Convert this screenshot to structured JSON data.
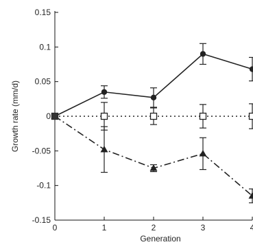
{
  "chart_data": {
    "type": "line",
    "title": "",
    "xlabel": "Generation",
    "ylabel": "Growth rate (mm/d)",
    "xlim": [
      0,
      4
    ],
    "ylim": [
      -0.15,
      0.15
    ],
    "x_ticks": [
      0,
      1,
      2,
      3,
      4
    ],
    "y_ticks": [
      0.15,
      0.1,
      0.05,
      0,
      -0.05,
      -0.1,
      -0.15
    ],
    "y_tick_labels": [
      "0.15",
      "0.1",
      "0.05",
      "0",
      "-0.05",
      "-0.1",
      "-0.15"
    ],
    "grid": false,
    "legend": "none",
    "series": [
      {
        "marker": "circle-filled",
        "line_style": "solid",
        "color": "#222222",
        "x": [
          0,
          1,
          2,
          3,
          4
        ],
        "y": [
          0,
          0.035,
          0.027,
          0.09,
          0.068
        ],
        "err": [
          0,
          0.009,
          0.014,
          0.015,
          0.017
        ]
      },
      {
        "marker": "square-open",
        "line_style": "dotted",
        "color": "#222222",
        "x": [
          0,
          1,
          2,
          3,
          4
        ],
        "y": [
          0,
          0,
          0,
          0,
          0
        ],
        "err": [
          0,
          0.02,
          0.012,
          0.017,
          0.018
        ]
      },
      {
        "marker": "triangle-filled",
        "line_style": "dashdot",
        "color": "#222222",
        "x": [
          0,
          1,
          2,
          3,
          4
        ],
        "y": [
          0,
          -0.048,
          -0.075,
          -0.054,
          -0.115
        ],
        "err": [
          0,
          0.033,
          0.005,
          0.023,
          0.01
        ]
      }
    ]
  }
}
